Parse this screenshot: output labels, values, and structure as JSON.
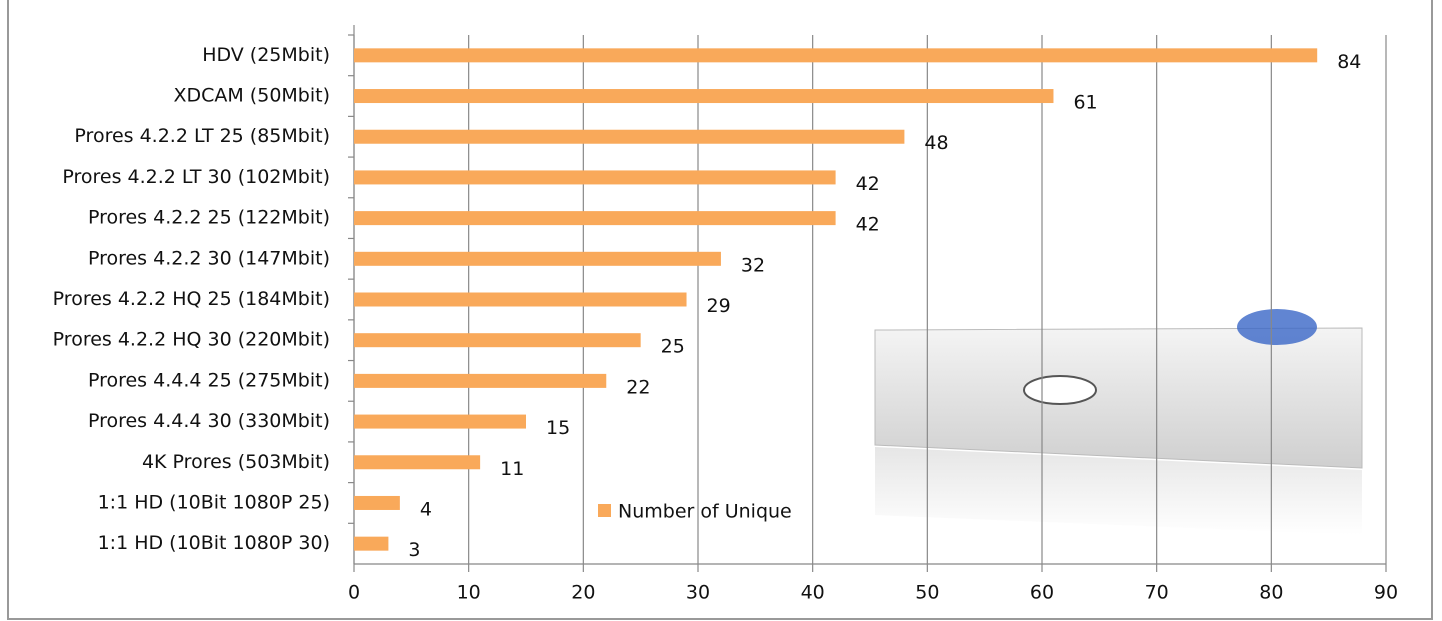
{
  "chart_data": {
    "type": "bar",
    "orientation": "horizontal",
    "categories": [
      "HDV (25Mbit)",
      "XDCAM (50Mbit)",
      "Prores 4.2.2 LT 25 (85Mbit)",
      "Prores 4.2.2 LT 30 (102Mbit)",
      "Prores 4.2.2 25 (122Mbit)",
      "Prores 4.2.2 30 (147Mbit)",
      "Prores 4.2.2 HQ 25 (184Mbit)",
      "Prores 4.2.2 HQ 30 (220Mbit)",
      "Prores 4.4.4 25 (275Mbit)",
      "Prores 4.4.4 30 (330Mbit)",
      "4K Prores (503Mbit)",
      "1:1 HD (10Bit 1080P 25)",
      "1:1 HD (10Bit 1080P 30)"
    ],
    "series": [
      {
        "name": "Number of Unique",
        "color": "#f9a95a",
        "values": [
          84,
          61,
          48,
          42,
          42,
          32,
          29,
          25,
          22,
          15,
          11,
          4,
          3
        ]
      }
    ],
    "xlim": [
      0,
      90
    ],
    "xticks": [
      0,
      10,
      20,
      30,
      40,
      50,
      60,
      70,
      80,
      90
    ],
    "grid": true
  }
}
